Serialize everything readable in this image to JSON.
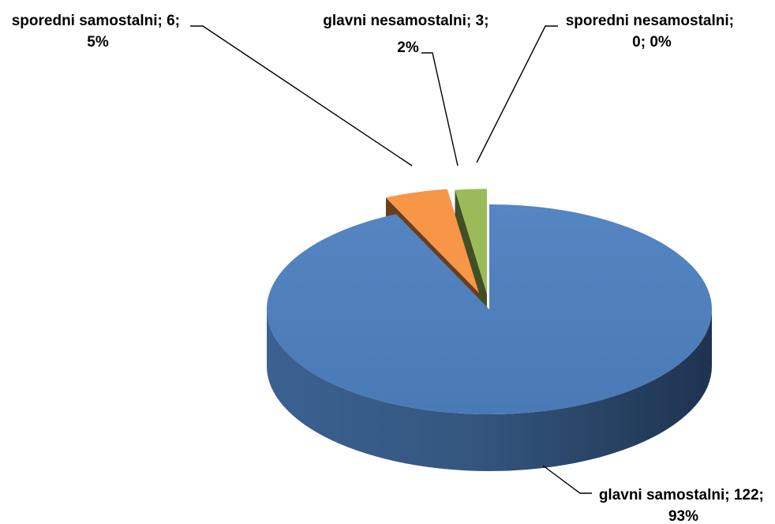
{
  "chart_data": {
    "type": "pie",
    "style": "3d-exploded",
    "title": "",
    "slices": [
      {
        "name": "glavni samostalni",
        "value": 122,
        "percent": "93%",
        "color": "#4F81BD",
        "label_line1": "glavni samostalni;  122;",
        "label_line2": "93%"
      },
      {
        "name": "sporedni samostalni",
        "value": 6,
        "percent": "5%",
        "color": "#F79646",
        "label_line1": "sporedni samostalni;  6;",
        "label_line2": "5%"
      },
      {
        "name": "glavni nesamostalni",
        "value": 3,
        "percent": "2%",
        "color": "#9BBB59",
        "label_line1": "glavni nesamostalni;  3;",
        "label_line2": "2%"
      },
      {
        "name": "sporedni nesamostalni",
        "value": 0,
        "percent": "0%",
        "color": "#8064A2",
        "label_line1": "sporedni nesamostalni;",
        "label_line2": "0; 0%"
      }
    ],
    "legend": false,
    "data_labels": "outside-with-leader-lines"
  }
}
